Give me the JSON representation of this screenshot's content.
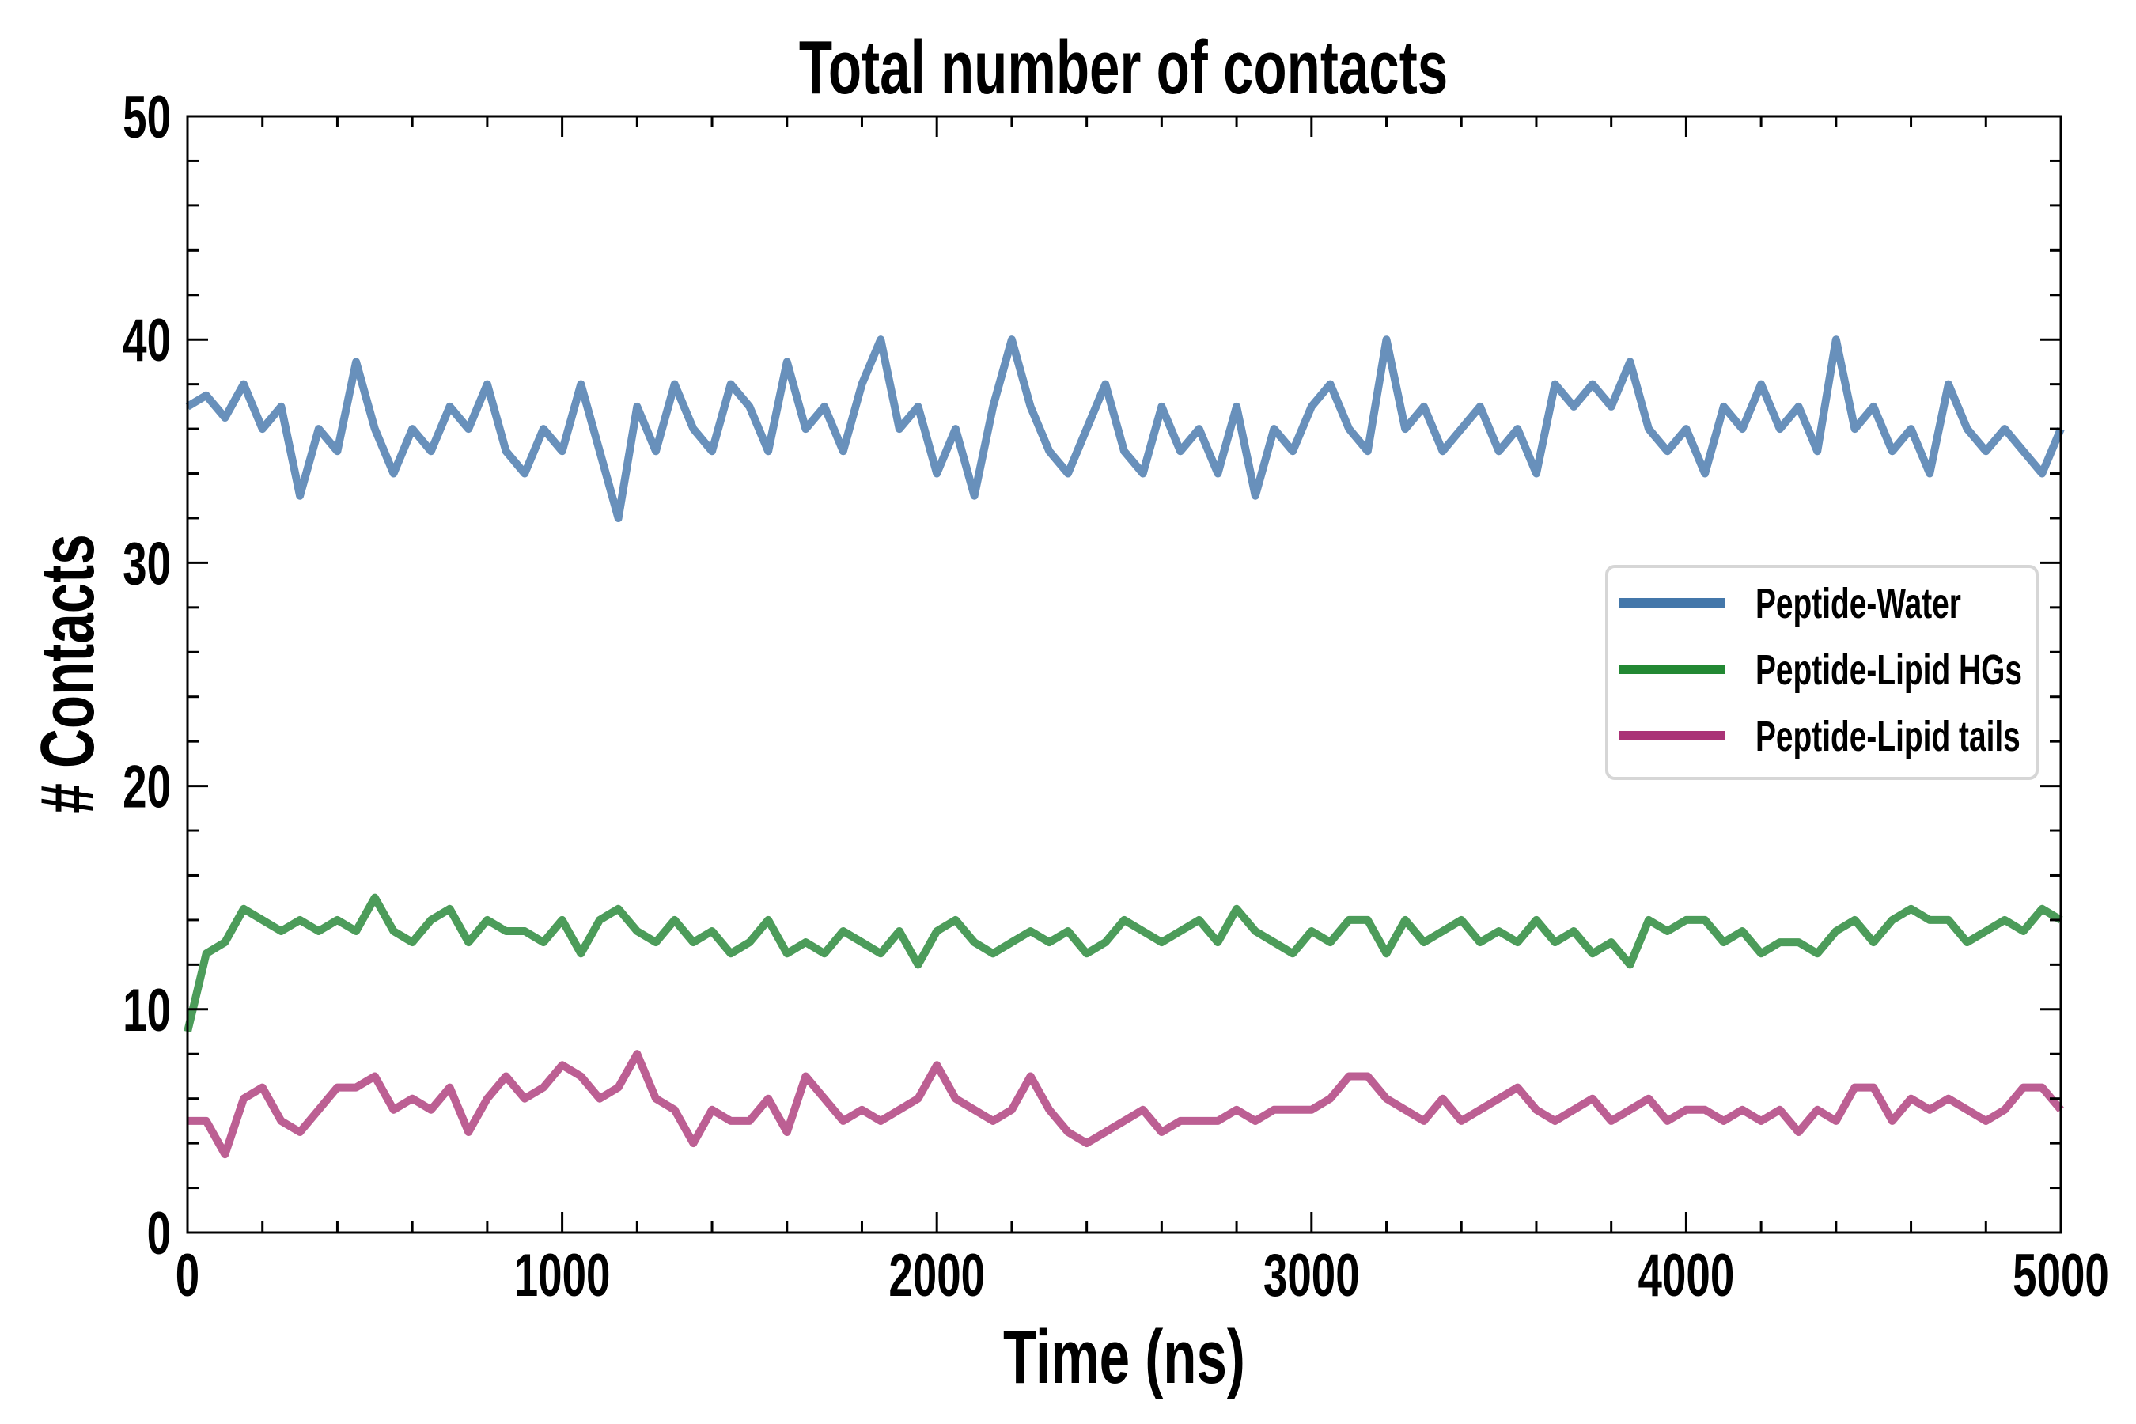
{
  "chart_data": {
    "type": "line",
    "title": "Total number of contacts",
    "xlabel": "Time (ns)",
    "ylabel": "# Contacts",
    "xlim": [
      0,
      5000
    ],
    "ylim": [
      0,
      50
    ],
    "xticks": [
      0,
      1000,
      2000,
      3000,
      4000,
      5000
    ],
    "yticks": [
      0,
      10,
      20,
      30,
      40,
      50
    ],
    "grid": false,
    "legend_position": "center-right",
    "x_step": 50,
    "series": [
      {
        "name": "Peptide-Water",
        "color": "#4477aa",
        "line_color": "#6890bb",
        "values": [
          37,
          37.5,
          36.5,
          38,
          36,
          37,
          33,
          36,
          35,
          39,
          36,
          34,
          36,
          35,
          37,
          36,
          38,
          35,
          34,
          36,
          35,
          38,
          35,
          32,
          37,
          35,
          38,
          36,
          35,
          38,
          37,
          35,
          39,
          36,
          37,
          35,
          38,
          40,
          36,
          37,
          34,
          36,
          33,
          37,
          40,
          37,
          35,
          34,
          36,
          38,
          35,
          34,
          37,
          35,
          36,
          34,
          37,
          33,
          36,
          35,
          37,
          38,
          36,
          35,
          40,
          36,
          37,
          35,
          36,
          37,
          35,
          36,
          34,
          38,
          37,
          38,
          37,
          39,
          36,
          35,
          36,
          34,
          37,
          36,
          38,
          36,
          37,
          35,
          40,
          36,
          37,
          35,
          36,
          34,
          38,
          36,
          35,
          36,
          35,
          34,
          36
        ]
      },
      {
        "name": "Peptide-Lipid HGs",
        "color": "#228833",
        "line_color": "#4c9c5a",
        "values": [
          9,
          12.5,
          13,
          14.5,
          14,
          13.5,
          14,
          13.5,
          14,
          13.5,
          15,
          13.5,
          13,
          14,
          14.5,
          13,
          14,
          13.5,
          13.5,
          13,
          14,
          12.5,
          14,
          14.5,
          13.5,
          13,
          14,
          13,
          13.5,
          12.5,
          13,
          14,
          12.5,
          13,
          12.5,
          13.5,
          13,
          12.5,
          13.5,
          12,
          13.5,
          14,
          13,
          12.5,
          13,
          13.5,
          13,
          13.5,
          12.5,
          13,
          14,
          13.5,
          13,
          13.5,
          14,
          13,
          14.5,
          13.5,
          13,
          12.5,
          13.5,
          13,
          14,
          14,
          12.5,
          14,
          13,
          13.5,
          14,
          13,
          13.5,
          13,
          14,
          13,
          13.5,
          12.5,
          13,
          12,
          14,
          13.5,
          14,
          14,
          13,
          13.5,
          12.5,
          13,
          13,
          12.5,
          13.5,
          14,
          13,
          14,
          14.5,
          14,
          14,
          13,
          13.5,
          14,
          13.5,
          14.5,
          14
        ]
      },
      {
        "name": "Peptide-Lipid tails",
        "color": "#aa3377",
        "line_color": "#bc5f93",
        "values": [
          5,
          5,
          3.5,
          6,
          6.5,
          5,
          4.5,
          5.5,
          6.5,
          6.5,
          7,
          5.5,
          6,
          5.5,
          6.5,
          4.5,
          6,
          7,
          6,
          6.5,
          7.5,
          7,
          6,
          6.5,
          8,
          6,
          5.5,
          4,
          5.5,
          5,
          5,
          6,
          4.5,
          7,
          6,
          5,
          5.5,
          5,
          5.5,
          6,
          7.5,
          6,
          5.5,
          5,
          5.5,
          7,
          5.5,
          4.5,
          4,
          4.5,
          5,
          5.5,
          4.5,
          5,
          5,
          5,
          5.5,
          5,
          5.5,
          5.5,
          5.5,
          6,
          7,
          7,
          6,
          5.5,
          5,
          6,
          5,
          5.5,
          6,
          6.5,
          5.5,
          5,
          5.5,
          6,
          5,
          5.5,
          6,
          5,
          5.5,
          5.5,
          5,
          5.5,
          5,
          5.5,
          4.5,
          5.5,
          5,
          6.5,
          6.5,
          5,
          6,
          5.5,
          6,
          5.5,
          5,
          5.5,
          6.5,
          6.5,
          5.5
        ]
      }
    ]
  }
}
